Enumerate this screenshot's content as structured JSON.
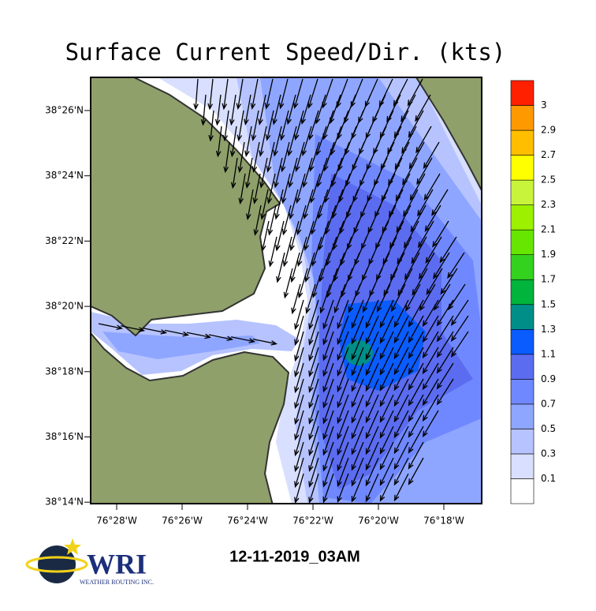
{
  "title": "Surface Current Speed/Dir. (kts)",
  "map": {
    "lat_labels": [
      "38°26'N",
      "38°24'N",
      "38°22'N",
      "38°20'N",
      "38°18'N",
      "38°16'N",
      "38°14'N"
    ],
    "lon_labels": [
      "76°28'W",
      "76°26'W",
      "76°24'W",
      "76°22'W",
      "76°20'W",
      "76°18'W"
    ]
  },
  "colorbar": {
    "levels": [
      0.1,
      0.3,
      0.5,
      0.7,
      0.9,
      1.1,
      1.3,
      1.5,
      1.7,
      1.9,
      2.1,
      2.3,
      2.5,
      2.7,
      2.9,
      3
    ],
    "colors": [
      "#ffffff",
      "#d8dfff",
      "#b6c3ff",
      "#8ea6ff",
      "#7088ff",
      "#5b6cf0",
      "#0a5cff",
      "#008f88",
      "#00b43c",
      "#33d21e",
      "#66e600",
      "#9cf000",
      "#c8f53c",
      "#ffff00",
      "#ffbf00",
      "#ff9900",
      "#ff2000"
    ]
  },
  "timestamp": "12-11-2019_03AM",
  "logo": {
    "name": "WRI",
    "subtitle": "WEATHER ROUTING INC."
  }
}
